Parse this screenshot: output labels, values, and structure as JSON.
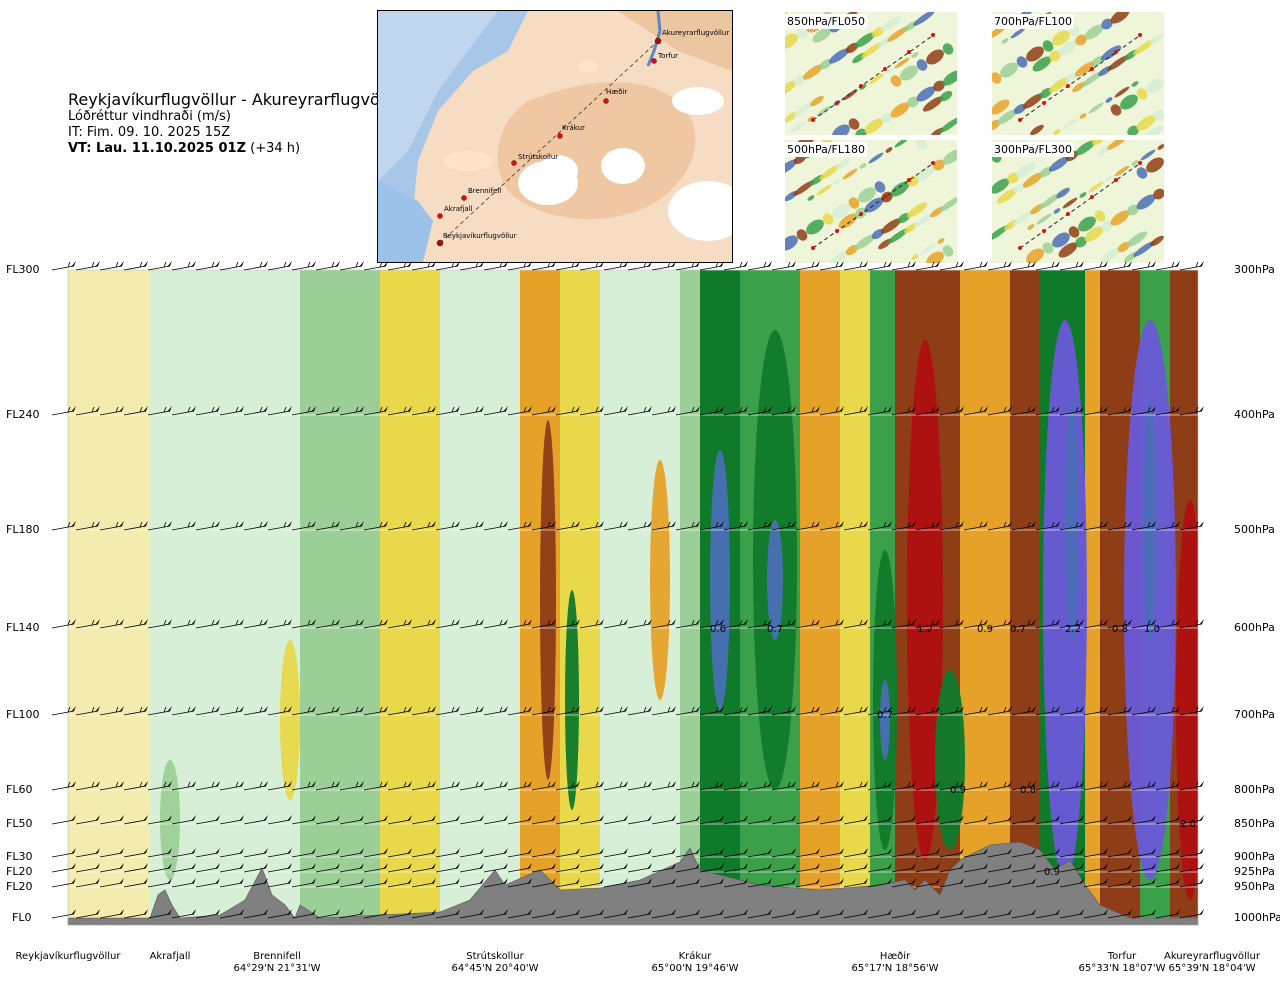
{
  "header": {
    "route": "Reykjavíkurflugvöllur - Akureyrarflugvöllur",
    "variable": "Lóðréttur vindhraði (m/s)",
    "issue_time": "IT: Fim. 09. 10. 2025 15Z",
    "valid_time_bold": "VT: Lau. 11.10.2025 01Z",
    "valid_time_lead": "(+34 h)"
  },
  "map": {
    "places": [
      "Akureyrarflugvöllur",
      "Torfur",
      "Hæðir",
      "Krákur",
      "Strútskollur",
      "Brennifell",
      "Akrafjall",
      "Reykjavíkurflugvöllur"
    ]
  },
  "mini_maps": [
    {
      "label": "850hPa/FL050"
    },
    {
      "label": "700hPa/FL100"
    },
    {
      "label": "500hPa/FL180"
    },
    {
      "label": "300hPa/FL300"
    }
  ],
  "levels": [
    {
      "fl": "FL300",
      "hpa": "300hPa"
    },
    {
      "fl": "FL240",
      "hpa": "400hPa"
    },
    {
      "fl": "FL180",
      "hpa": "500hPa"
    },
    {
      "fl": "FL140",
      "hpa": "600hPa"
    },
    {
      "fl": "FL100",
      "hpa": "700hPa"
    },
    {
      "fl": "FL60",
      "hpa": "800hPa"
    },
    {
      "fl": "FL50",
      "hpa": "850hPa"
    },
    {
      "fl": "FL30",
      "hpa": "900hPa"
    },
    {
      "fl": "FL20",
      "hpa": "925hPa"
    },
    {
      "fl": "FL20",
      "hpa": "950hPa"
    },
    {
      "fl": "FL0",
      "hpa": "1000hPa"
    }
  ],
  "locations": [
    {
      "name": "Reykjavíkurflugvöllur",
      "coord": ""
    },
    {
      "name": "Akrafjall",
      "coord": ""
    },
    {
      "name": "Brennifell",
      "coord": "64°29'N 21°31'W"
    },
    {
      "name": "Strútskollur",
      "coord": "64°45'N 20°40'W"
    },
    {
      "name": "Krákur",
      "coord": "65°00'N 19°46'W"
    },
    {
      "name": "Hæðir",
      "coord": "65°17'N 18°56'W"
    },
    {
      "name": "Torfur",
      "coord": "65°33'N 18°07'W"
    },
    {
      "name": "Akureyrarflugvöllur",
      "coord": "65°39'N 18°04'W"
    }
  ],
  "chart_data": {
    "type": "heatmap",
    "title": "Reykjavíkurflugvöllur - Akureyrarflugvöllur",
    "variable": "Lóðréttur vindhraði (m/s)",
    "x_categories": [
      "Reykjavíkurflugvöllur",
      "Akrafjall",
      "Brennifell",
      "Strútskollur",
      "Krákur",
      "Hæðir",
      "Torfur",
      "Akureyrarflugvöllur"
    ],
    "y_levels_fl": [
      "FL300",
      "FL240",
      "FL180",
      "FL140",
      "FL100",
      "FL60",
      "FL50",
      "FL30",
      "FL20",
      "FL20",
      "FL0"
    ],
    "y_levels_hpa": [
      "300hPa",
      "400hPa",
      "500hPa",
      "600hPa",
      "700hPa",
      "800hPa",
      "850hPa",
      "900hPa",
      "925hPa",
      "950hPa",
      "1000hPa"
    ],
    "value_labels": [
      {
        "text": "0.6",
        "level": "600hPa"
      },
      {
        "text": "0.7",
        "level": "600hPa"
      },
      {
        "text": "1.2",
        "level": "600hPa"
      },
      {
        "text": "0.9",
        "level": "600hPa"
      },
      {
        "text": "0.7",
        "level": "600hPa"
      },
      {
        "text": "2.2",
        "level": "600hPa"
      },
      {
        "text": "0.8",
        "level": "600hPa"
      },
      {
        "text": "1.0",
        "level": "600hPa"
      },
      {
        "text": "0.7",
        "level": "700hPa"
      },
      {
        "text": "0.9",
        "level": "800hPa"
      },
      {
        "text": "0.8",
        "level": "800hPa"
      },
      {
        "text": "2.0",
        "level": "850hPa"
      },
      {
        "text": "0.9",
        "level": "925hPa"
      }
    ],
    "palette": {
      "strong_down": "#4a6fb5",
      "down3": "#0f7a2a",
      "down2": "#3aa04a",
      "down1": "#9ccf97",
      "weak": "#d6efd6",
      "neutral": "#f3ecae",
      "up1": "#e8d84a",
      "up2": "#e6a228",
      "up3": "#8e3d16",
      "strong_up": "#b01010",
      "extreme_down": "#6a58d8",
      "terrain": "#808080"
    }
  }
}
